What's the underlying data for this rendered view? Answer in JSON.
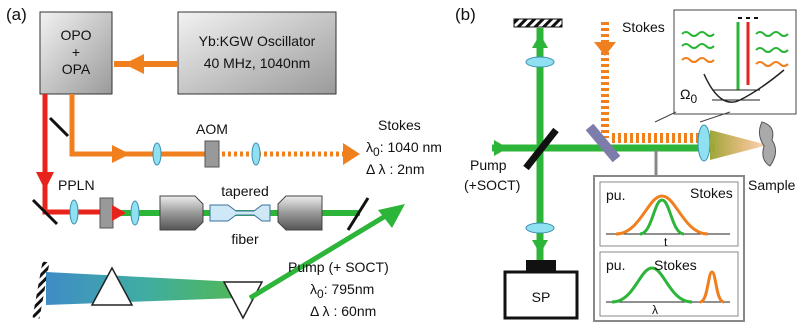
{
  "panel_a": {
    "label": "(a)",
    "opo_box": [
      "OPO",
      "+",
      "OPA"
    ],
    "oscillator": {
      "name": "Yb:KGW Oscillator",
      "spec": "40 MHz, 1040nm"
    },
    "aom": "AOM",
    "stokes": {
      "title": "Stokes",
      "center_symbol": "λ",
      "center_sub": "0",
      "center_value": ": 1040 nm",
      "width_symbol": "Δ λ",
      "width_value": ": 2nm"
    },
    "ppln": "PPLN",
    "fiber": [
      "tapered",
      "fiber"
    ],
    "pump": {
      "title": "Pump (+ SOCT)",
      "center_symbol": "λ",
      "center_sub": "0",
      "center_value": ": 795nm",
      "width_symbol": "Δ λ",
      "width_value": ": 60nm"
    }
  },
  "panel_b": {
    "label": "(b)",
    "stokes": "Stokes",
    "pump": [
      "Pump",
      "(+SOCT)"
    ],
    "sample": "Sample",
    "detector": "SP",
    "energy_symbol": "Ω",
    "energy_sub": "0",
    "time_plot": {
      "pump": "pu.",
      "stokes": "Stokes",
      "axis": "t"
    },
    "spectrum_plot": {
      "pump": "pu.",
      "stokes": "Stokes",
      "axis": "λ"
    }
  }
}
